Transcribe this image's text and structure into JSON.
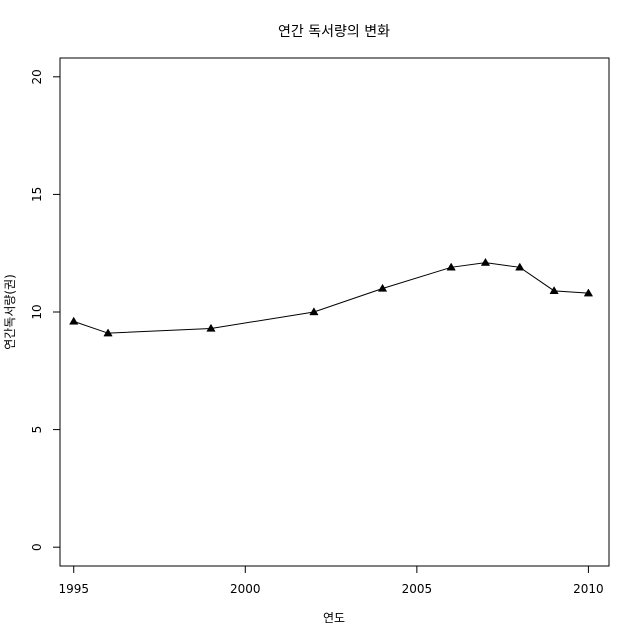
{
  "chart_data": {
    "type": "line",
    "title": "연간 독서량의 변화",
    "xlabel": "연도",
    "ylabel": "연간독서량(권)",
    "xlim": [
      1994.6,
      2010.6
    ],
    "ylim": [
      -0.8,
      20.8
    ],
    "xticks": [
      1995,
      2000,
      2005,
      2010
    ],
    "yticks": [
      0,
      5,
      10,
      15,
      20
    ],
    "marker": "filled-triangle",
    "line_color": "#000000",
    "grid": false,
    "legend": "none",
    "series": [
      {
        "x": [
          1995,
          1996,
          1999,
          2002,
          2004,
          2006,
          2007,
          2008,
          2009,
          2010
        ],
        "y": [
          9.6,
          9.1,
          9.3,
          10.0,
          11.0,
          11.9,
          12.1,
          11.9,
          10.9,
          10.8
        ]
      }
    ]
  }
}
